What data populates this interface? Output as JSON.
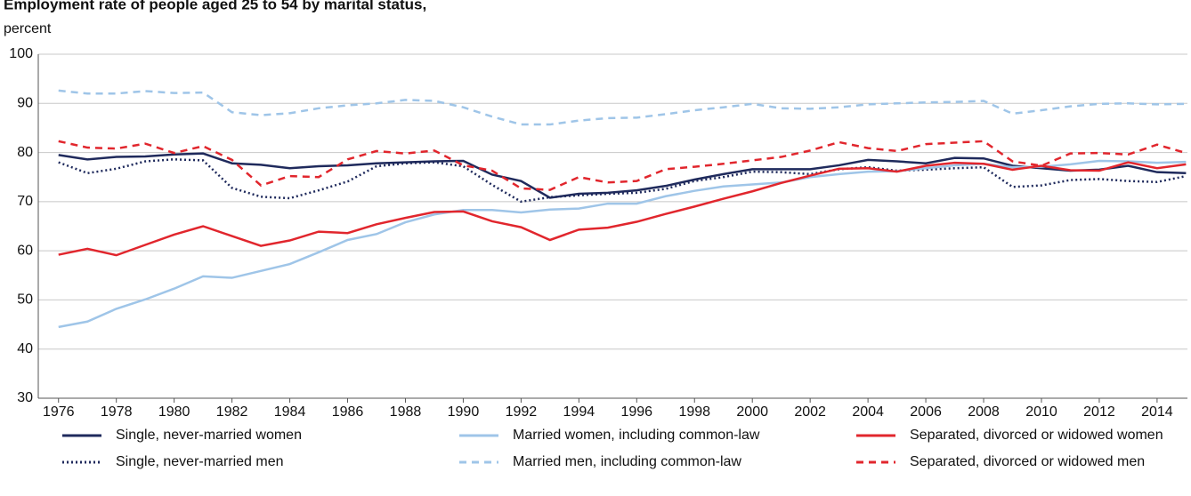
{
  "chart_data": {
    "type": "line",
    "title": "Employment rate of people aged 25 to 54 by marital status,",
    "y_label": "percent",
    "x": [
      1976,
      1977,
      1978,
      1979,
      1980,
      1981,
      1982,
      1983,
      1984,
      1985,
      1986,
      1987,
      1988,
      1989,
      1990,
      1991,
      1992,
      1993,
      1994,
      1995,
      1996,
      1997,
      1998,
      1999,
      2000,
      2001,
      2002,
      2003,
      2004,
      2005,
      2006,
      2007,
      2008,
      2009,
      2010,
      2011,
      2012,
      2013,
      2014,
      2015
    ],
    "xlim": [
      1975.3,
      2015.05
    ],
    "xticks": [
      1976,
      1978,
      1980,
      1982,
      1984,
      1986,
      1988,
      1990,
      1992,
      1994,
      1996,
      1998,
      2000,
      2002,
      2004,
      2006,
      2008,
      2010,
      2012,
      2014
    ],
    "ylim": [
      30,
      100
    ],
    "yticks": [
      30,
      40,
      50,
      60,
      70,
      80,
      90,
      100
    ],
    "grid": true,
    "series": [
      {
        "name": "Single, never-married women",
        "color": "#1f2a5c",
        "dash": "solid",
        "values": [
          79.5,
          78.6,
          79.1,
          79.2,
          79.6,
          79.8,
          77.8,
          77.5,
          76.8,
          77.2,
          77.4,
          77.8,
          78.0,
          78.2,
          78.3,
          75.5,
          74.2,
          70.8,
          71.6,
          71.8,
          72.3,
          73.2,
          74.5,
          75.6,
          76.6,
          76.6,
          76.6,
          77.4,
          78.5,
          78.2,
          77.8,
          78.9,
          78.8,
          77.3,
          76.8,
          76.3,
          76.5,
          77.3,
          76.0,
          75.8
        ]
      },
      {
        "name": "Single, never-married men",
        "color": "#1f2a5c",
        "dash": "dotted",
        "values": [
          78.0,
          75.8,
          76.7,
          78.2,
          78.6,
          78.4,
          72.8,
          71.0,
          70.7,
          72.3,
          74.1,
          77.2,
          77.8,
          78.0,
          77.2,
          73.4,
          70.0,
          70.9,
          71.3,
          71.6,
          71.8,
          72.6,
          74.2,
          75.0,
          76.1,
          76.0,
          75.6,
          76.6,
          77.0,
          76.3,
          76.5,
          76.8,
          77.0,
          73.0,
          73.3,
          74.4,
          74.6,
          74.2,
          74.0,
          75.2
        ]
      },
      {
        "name": "Married women, including common-law",
        "color": "#9fc5e8",
        "dash": "solid",
        "values": [
          44.5,
          45.6,
          48.2,
          50.1,
          52.3,
          54.8,
          54.5,
          55.9,
          57.3,
          59.7,
          62.2,
          63.4,
          65.8,
          67.4,
          68.3,
          68.3,
          67.8,
          68.4,
          68.6,
          69.6,
          69.6,
          71.1,
          72.2,
          73.1,
          73.5,
          73.9,
          75.0,
          75.6,
          76.1,
          76.2,
          76.8,
          77.4,
          77.7,
          77.0,
          77.1,
          77.6,
          78.3,
          78.2,
          77.9,
          78.1
        ]
      },
      {
        "name": "Married men, including common-law",
        "color": "#9fc5e8",
        "dash": "dashed",
        "values": [
          92.6,
          92.0,
          92.0,
          92.5,
          92.1,
          92.2,
          88.2,
          87.6,
          88.0,
          89.0,
          89.6,
          90.0,
          90.7,
          90.5,
          89.2,
          87.3,
          85.7,
          85.7,
          86.5,
          87.0,
          87.1,
          87.8,
          88.6,
          89.2,
          89.9,
          89.0,
          88.9,
          89.2,
          89.8,
          90.0,
          90.2,
          90.3,
          90.5,
          87.9,
          88.6,
          89.4,
          89.9,
          90.0,
          89.8,
          89.9
        ]
      },
      {
        "name": "Separated, divorced or widowed women",
        "color": "#e1262d",
        "dash": "solid",
        "values": [
          59.2,
          60.4,
          59.1,
          61.2,
          63.3,
          65.0,
          63.0,
          61.0,
          62.1,
          63.9,
          63.6,
          65.4,
          66.7,
          67.9,
          68.0,
          66.0,
          64.8,
          62.2,
          64.3,
          64.7,
          65.9,
          67.5,
          69.0,
          70.6,
          72.1,
          73.8,
          75.3,
          76.7,
          76.8,
          76.1,
          77.3,
          77.9,
          77.7,
          76.5,
          77.3,
          76.4,
          76.3,
          78.0,
          76.8,
          77.6
        ]
      },
      {
        "name": "Separated, divorced or widowed men",
        "color": "#e1262d",
        "dash": "dashed",
        "values": [
          82.3,
          81.0,
          80.8,
          81.8,
          79.9,
          81.3,
          78.5,
          73.3,
          75.2,
          75.0,
          78.6,
          80.3,
          79.8,
          80.4,
          77.4,
          76.3,
          72.7,
          72.4,
          75.0,
          73.9,
          74.2,
          76.6,
          77.1,
          77.7,
          78.4,
          79.1,
          80.4,
          82.1,
          80.9,
          80.3,
          81.7,
          82.0,
          82.3,
          78.2,
          77.3,
          79.8,
          79.9,
          79.6,
          81.6,
          79.9
        ]
      }
    ]
  }
}
